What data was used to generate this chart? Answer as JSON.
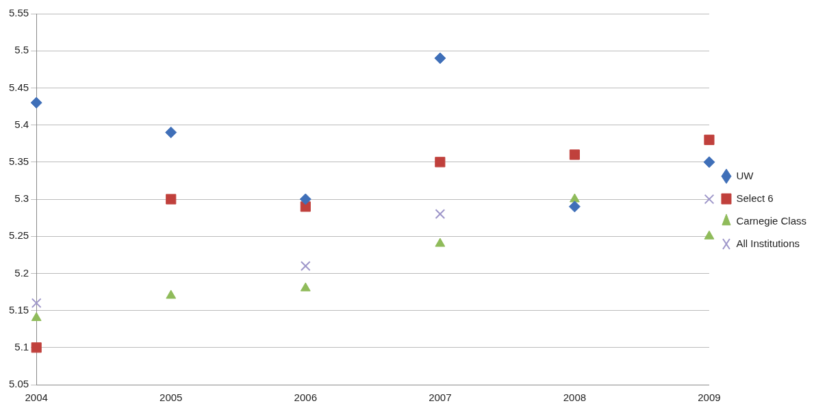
{
  "chart_data": {
    "type": "scatter",
    "categories": [
      "2004",
      "2005",
      "2006",
      "2007",
      "2008",
      "2009"
    ],
    "series": [
      {
        "name": "UW",
        "color": "#3f6fb8",
        "marker": "diamond",
        "values": [
          5.43,
          5.39,
          5.3,
          5.49,
          5.29,
          5.35
        ]
      },
      {
        "name": "Select 6",
        "color": "#c0403c",
        "marker": "square",
        "values": [
          5.1,
          5.3,
          5.29,
          5.35,
          5.36,
          5.38
        ]
      },
      {
        "name": "Carnegie Class",
        "color": "#8fbb5a",
        "marker": "triangle",
        "values": [
          5.14,
          5.17,
          5.18,
          5.24,
          5.3,
          5.25
        ]
      },
      {
        "name": "All Institutions",
        "color": "#9d95c9",
        "marker": "cross",
        "values": [
          5.16,
          null,
          5.21,
          5.28,
          null,
          5.3
        ]
      }
    ],
    "ylim": [
      5.05,
      5.55
    ],
    "yticks": [
      5.05,
      5.1,
      5.15,
      5.2,
      5.25,
      5.3,
      5.35,
      5.4,
      5.45,
      5.5,
      5.55
    ],
    "grid": "y",
    "legend": "right"
  }
}
